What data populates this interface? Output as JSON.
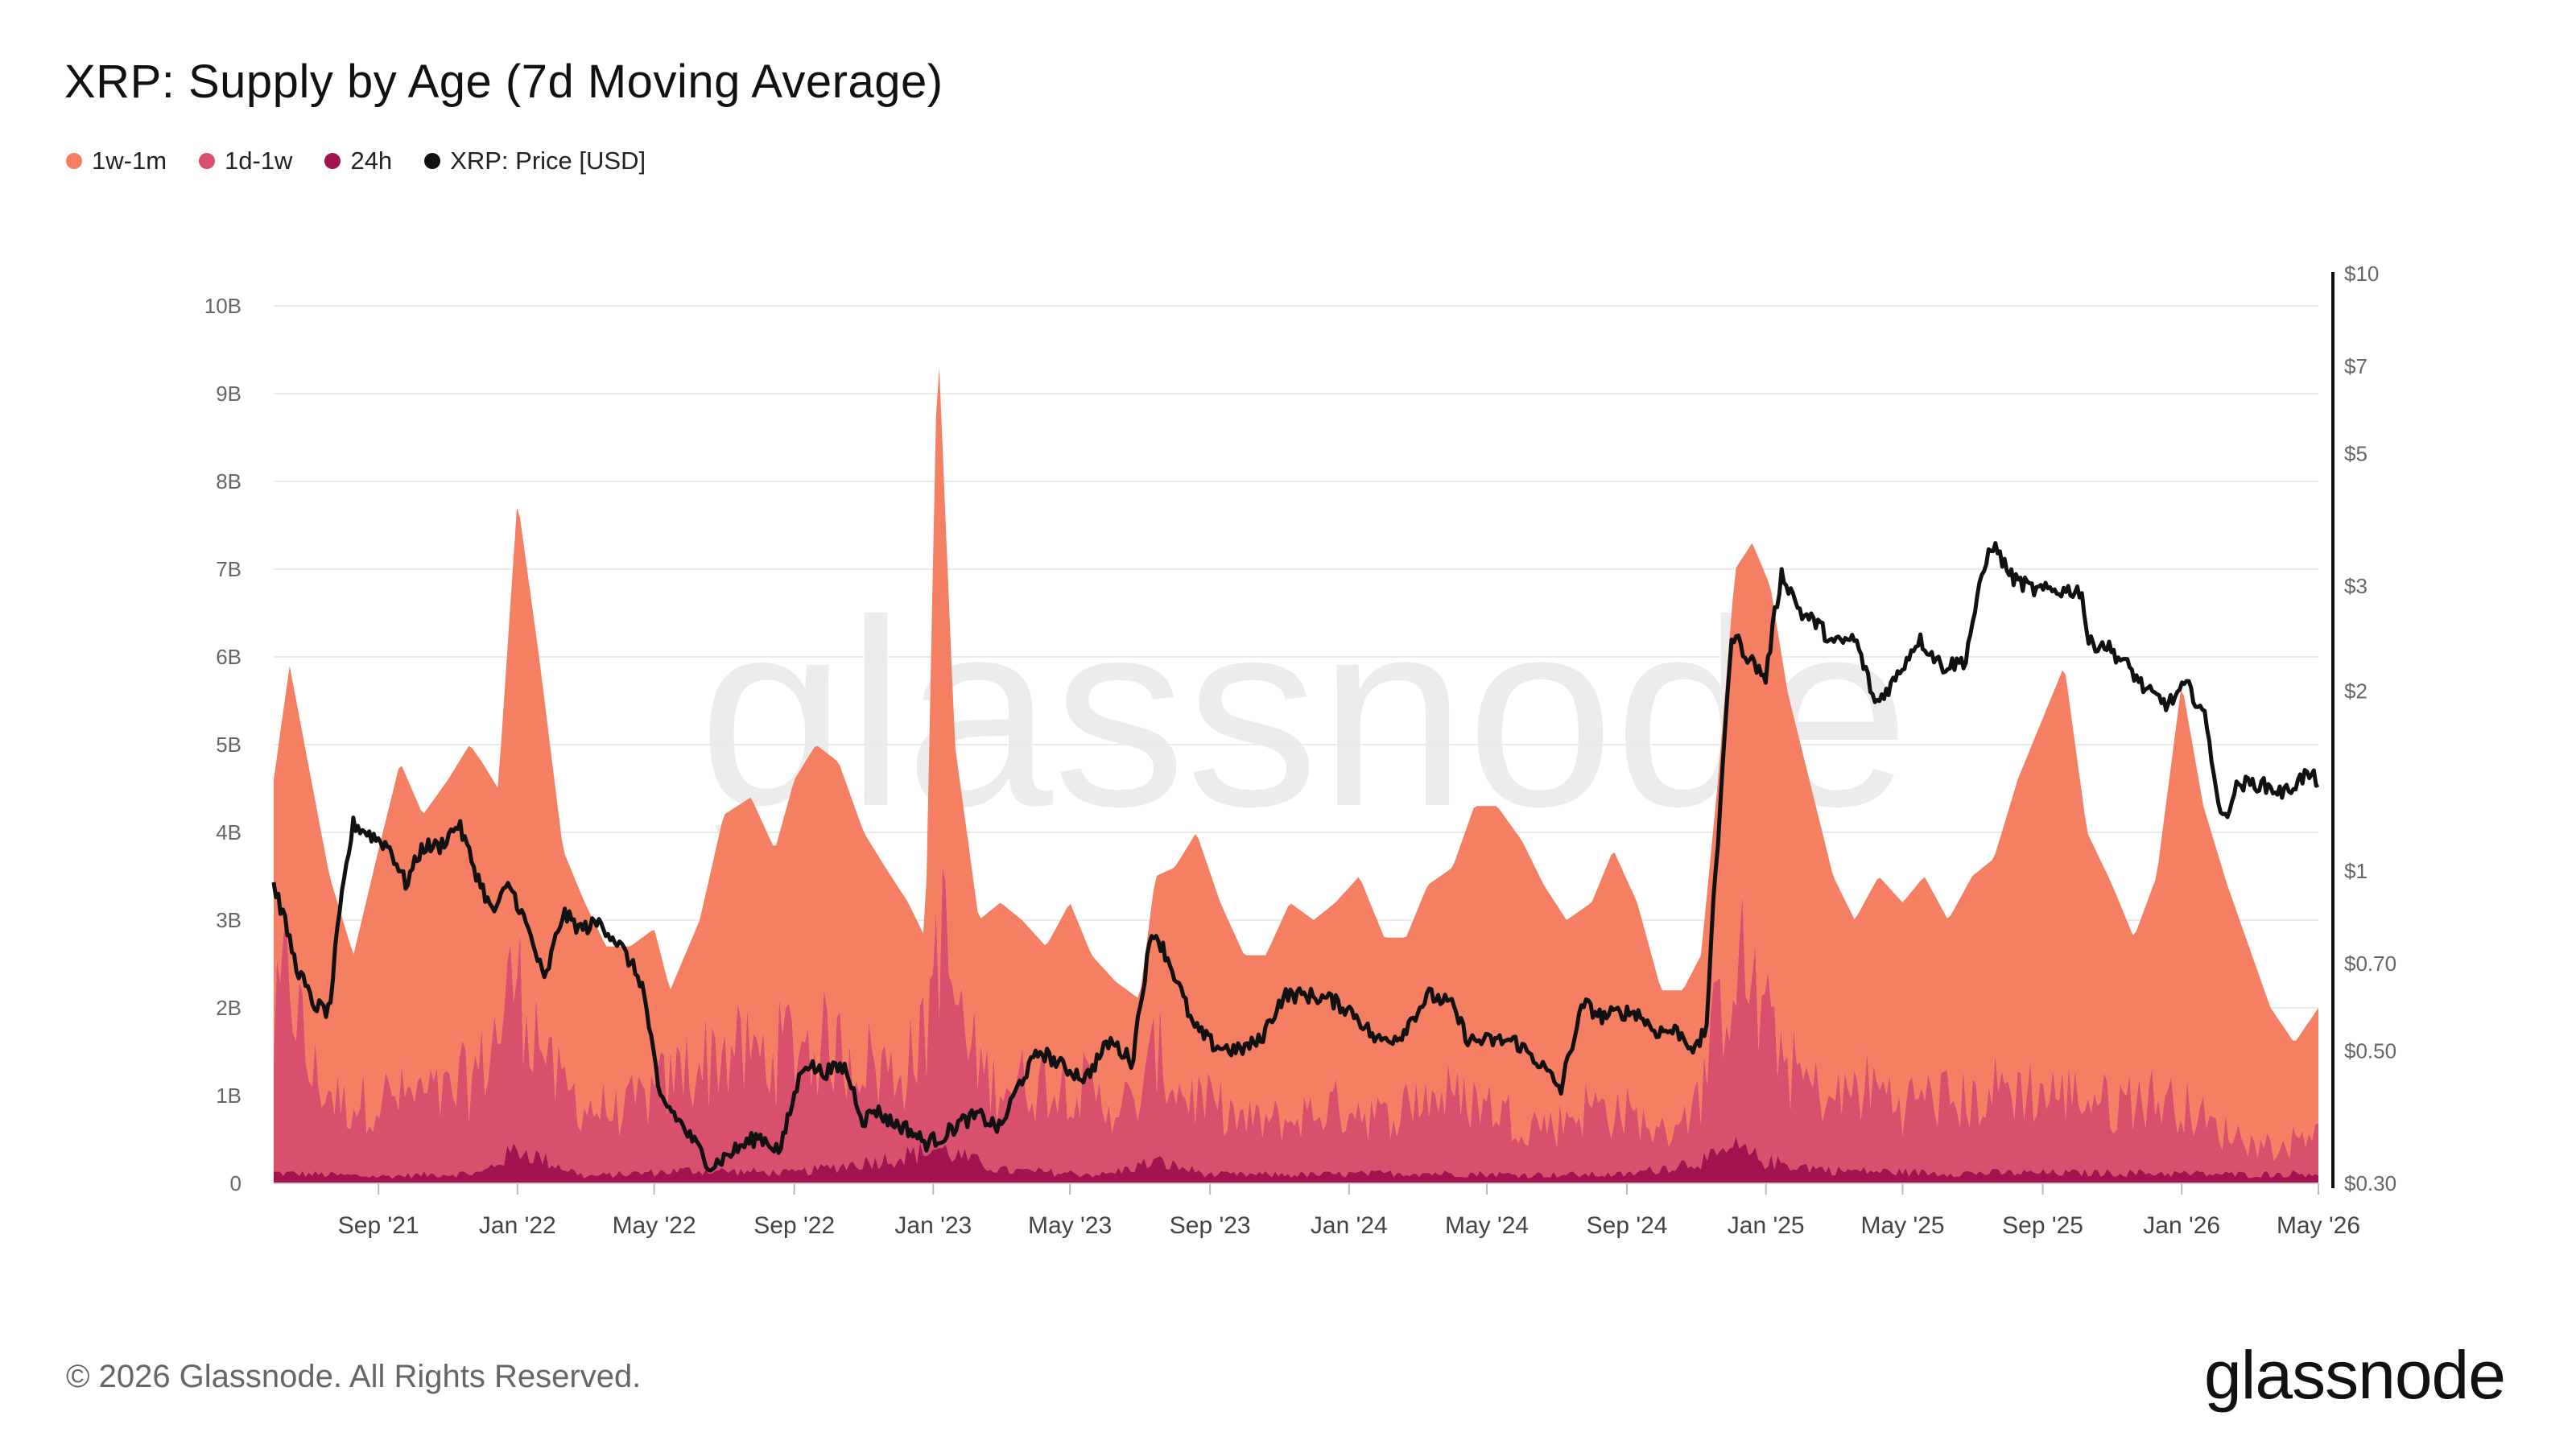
{
  "title": "XRP: Supply by Age (7d Moving Average)",
  "legend": [
    {
      "label": "1w-1m",
      "color": "#f47f63"
    },
    {
      "label": "1d-1w",
      "color": "#d9506c"
    },
    {
      "label": "24h",
      "color": "#a3134f"
    },
    {
      "label": "XRP: Price [USD]",
      "color": "#111111"
    }
  ],
  "footer": "© 2026 Glassnode. All Rights Reserved.",
  "watermark": "glassnode",
  "logo": "glassnode",
  "chart_data": {
    "type": "area",
    "x_start": "2021-06-01",
    "x_end": "2026-05-01",
    "x_ticks": [
      "2021-09-01",
      "2022-01-01",
      "2022-05-01",
      "2022-09-01",
      "2023-01-01",
      "2023-05-01",
      "2023-09-01",
      "2024-01-01",
      "2024-05-01",
      "2024-09-01",
      "2025-01-01",
      "2025-05-01",
      "2025-09-01",
      "2026-01-01",
      "2026-05-01"
    ],
    "x_tick_labels": [
      "Sep '21",
      "Jan '22",
      "May '22",
      "Sep '22",
      "Jan '23",
      "May '23",
      "Sep '23",
      "Jan '24",
      "May '24",
      "Sep '24",
      "Jan '25",
      "May '25",
      "Sep '25",
      "Jan '26",
      "May '26"
    ],
    "y_left": {
      "label": "",
      "range": [
        0,
        10000000000
      ],
      "ticks": [
        0,
        1000000000,
        2000000000,
        3000000000,
        4000000000,
        5000000000,
        6000000000,
        7000000000,
        8000000000,
        9000000000,
        10000000000
      ],
      "tick_labels": [
        "0",
        "1B",
        "2B",
        "3B",
        "4B",
        "5B",
        "6B",
        "7B",
        "8B",
        "9B",
        "10B"
      ]
    },
    "y_right": {
      "label": "",
      "scale": "log",
      "range": [
        0.3,
        10
      ],
      "ticks": [
        0.3,
        0.5,
        0.7,
        1,
        2,
        3,
        5,
        7,
        10
      ],
      "tick_labels": [
        "$0.30",
        "$0.50",
        "$0.70",
        "$1",
        "$2",
        "$3",
        "$5",
        "$7",
        "$10"
      ]
    },
    "grid": true,
    "stacked": true,
    "series": [
      {
        "name": "1w-1m",
        "color": "#f47f63",
        "axis": "left",
        "x": [
          "2021-06-01",
          "2021-06-15",
          "2021-07-01",
          "2021-07-20",
          "2021-08-10",
          "2021-09-01",
          "2021-09-20",
          "2021-10-10",
          "2021-11-01",
          "2021-11-20",
          "2021-12-01",
          "2021-12-15",
          "2022-01-01",
          "2022-01-20",
          "2022-02-10",
          "2022-03-01",
          "2022-03-20",
          "2022-04-10",
          "2022-05-01",
          "2022-05-15",
          "2022-06-10",
          "2022-07-01",
          "2022-07-25",
          "2022-08-15",
          "2022-09-01",
          "2022-09-20",
          "2022-10-10",
          "2022-11-01",
          "2022-11-20",
          "2022-12-10",
          "2022-12-25",
          "2023-01-05",
          "2023-01-20",
          "2023-02-10",
          "2023-03-01",
          "2023-03-20",
          "2023-04-10",
          "2023-05-01",
          "2023-05-20",
          "2023-06-10",
          "2023-07-01",
          "2023-07-15",
          "2023-08-01",
          "2023-08-20",
          "2023-09-10",
          "2023-10-01",
          "2023-10-20",
          "2023-11-10",
          "2023-12-01",
          "2023-12-20",
          "2024-01-10",
          "2024-02-01",
          "2024-02-20",
          "2024-03-10",
          "2024-04-01",
          "2024-04-20",
          "2024-05-10",
          "2024-06-01",
          "2024-06-20",
          "2024-07-10",
          "2024-08-01",
          "2024-08-20",
          "2024-09-10",
          "2024-10-01",
          "2024-10-20",
          "2024-11-05",
          "2024-11-20",
          "2024-12-05",
          "2024-12-20",
          "2025-01-05",
          "2025-01-20",
          "2025-02-10",
          "2025-03-01",
          "2025-03-20",
          "2025-04-10",
          "2025-05-01",
          "2025-05-20",
          "2025-06-10",
          "2025-07-01",
          "2025-07-20",
          "2025-08-10",
          "2025-09-01",
          "2025-09-20",
          "2025-10-10",
          "2025-11-01",
          "2025-11-20",
          "2025-12-10",
          "2026-01-01",
          "2026-01-20",
          "2026-02-10",
          "2026-03-01",
          "2026-03-20",
          "2026-04-10",
          "2026-05-01"
        ],
        "values": [
          4.6,
          5.9,
          4.8,
          3.5,
          2.6,
          3.8,
          4.8,
          4.2,
          4.6,
          5.0,
          4.8,
          4.5,
          7.8,
          6.0,
          3.8,
          3.2,
          2.7,
          2.7,
          2.9,
          2.2,
          3.0,
          4.2,
          4.4,
          3.8,
          4.6,
          5.0,
          4.8,
          4.0,
          3.6,
          3.2,
          2.8,
          9.7,
          5.0,
          3.0,
          3.2,
          3.0,
          2.7,
          3.2,
          2.6,
          2.3,
          2.1,
          3.5,
          3.6,
          4.0,
          3.2,
          2.6,
          2.6,
          3.2,
          3.0,
          3.2,
          3.5,
          2.8,
          2.8,
          3.4,
          3.6,
          4.3,
          4.3,
          3.9,
          3.4,
          3.0,
          3.2,
          3.8,
          3.2,
          2.2,
          2.2,
          2.6,
          4.6,
          7.0,
          7.3,
          6.8,
          5.6,
          4.5,
          3.5,
          3.0,
          3.5,
          3.2,
          3.5,
          3.0,
          3.5,
          3.7,
          4.6,
          5.3,
          5.9,
          4.0,
          3.4,
          2.8,
          3.5,
          5.7,
          4.3,
          3.4,
          2.7,
          2.0,
          1.6,
          2.0
        ]
      },
      {
        "name": "1d-1w",
        "color": "#d9506c",
        "axis": "left",
        "x": [
          "2021-06-01",
          "2021-06-15",
          "2021-07-01",
          "2021-08-01",
          "2021-09-01",
          "2021-10-01",
          "2021-11-01",
          "2021-12-01",
          "2022-01-01",
          "2022-02-01",
          "2022-03-01",
          "2022-04-01",
          "2022-05-01",
          "2022-06-01",
          "2022-07-01",
          "2022-08-01",
          "2022-09-01",
          "2022-10-01",
          "2022-11-01",
          "2022-12-01",
          "2022-12-25",
          "2023-01-05",
          "2023-02-01",
          "2023-03-01",
          "2023-04-01",
          "2023-05-01",
          "2023-06-01",
          "2023-07-01",
          "2023-07-15",
          "2023-08-01",
          "2023-09-01",
          "2023-10-01",
          "2023-11-01",
          "2023-12-01",
          "2024-01-01",
          "2024-02-01",
          "2024-03-01",
          "2024-04-01",
          "2024-05-01",
          "2024-06-01",
          "2024-07-01",
          "2024-08-01",
          "2024-09-01",
          "2024-10-01",
          "2024-11-01",
          "2024-11-20",
          "2024-12-05",
          "2025-01-01",
          "2025-02-01",
          "2025-03-01",
          "2025-04-01",
          "2025-05-01",
          "2025-06-01",
          "2025-07-01",
          "2025-08-01",
          "2025-09-01",
          "2025-10-01",
          "2025-11-01",
          "2025-12-01",
          "2026-01-01",
          "2026-02-01",
          "2026-03-01",
          "2026-04-01",
          "2026-05-01"
        ],
        "values": [
          1.5,
          2.4,
          1.2,
          0.8,
          0.9,
          0.9,
          0.9,
          1.2,
          2.0,
          1.0,
          0.8,
          0.7,
          0.9,
          1.2,
          1.4,
          1.3,
          1.5,
          1.4,
          1.2,
          1.0,
          1.3,
          2.6,
          1.2,
          1.0,
          1.0,
          1.1,
          0.8,
          0.7,
          1.3,
          0.9,
          0.8,
          0.6,
          0.6,
          0.7,
          0.8,
          0.6,
          0.9,
          0.9,
          0.8,
          0.6,
          0.6,
          0.8,
          0.7,
          0.4,
          0.7,
          1.5,
          2.2,
          1.6,
          1.0,
          0.8,
          1.0,
          0.8,
          0.9,
          0.8,
          1.0,
          0.9,
          0.9,
          0.8,
          0.9,
          0.8,
          0.5,
          0.4,
          0.3,
          0.6
        ]
      },
      {
        "name": "24h",
        "color": "#a3134f",
        "axis": "left",
        "x": [
          "2021-06-01",
          "2021-09-01",
          "2021-12-01",
          "2022-01-01",
          "2022-03-01",
          "2022-06-01",
          "2022-09-01",
          "2022-12-01",
          "2023-01-05",
          "2023-03-01",
          "2023-06-01",
          "2023-07-15",
          "2023-09-01",
          "2023-12-01",
          "2024-03-01",
          "2024-06-01",
          "2024-09-01",
          "2024-11-20",
          "2024-12-05",
          "2025-01-01",
          "2025-03-01",
          "2025-06-01",
          "2025-09-01",
          "2025-12-01",
          "2026-03-01",
          "2026-05-01"
        ],
        "values": [
          0.12,
          0.08,
          0.12,
          0.4,
          0.08,
          0.15,
          0.12,
          0.3,
          0.4,
          0.15,
          0.1,
          0.25,
          0.1,
          0.1,
          0.12,
          0.1,
          0.1,
          0.3,
          0.4,
          0.25,
          0.15,
          0.12,
          0.12,
          0.12,
          0.1,
          0.12
        ]
      },
      {
        "name": "XRP: Price [USD]",
        "color": "#111111",
        "axis": "right",
        "type": "line",
        "x": [
          "2021-06-01",
          "2021-06-20",
          "2021-07-05",
          "2021-07-20",
          "2021-08-10",
          "2021-08-25",
          "2021-09-10",
          "2021-09-25",
          "2021-10-10",
          "2021-10-25",
          "2021-11-10",
          "2021-11-25",
          "2021-12-10",
          "2021-12-25",
          "2022-01-10",
          "2022-01-25",
          "2022-02-10",
          "2022-02-25",
          "2022-03-15",
          "2022-04-01",
          "2022-04-20",
          "2022-05-05",
          "2022-05-15",
          "2022-06-01",
          "2022-06-20",
          "2022-07-10",
          "2022-08-01",
          "2022-08-20",
          "2022-09-10",
          "2022-09-25",
          "2022-10-15",
          "2022-11-01",
          "2022-11-10",
          "2022-11-25",
          "2022-12-10",
          "2022-12-25",
          "2023-01-10",
          "2023-01-25",
          "2023-02-10",
          "2023-03-01",
          "2023-03-20",
          "2023-04-05",
          "2023-04-25",
          "2023-05-15",
          "2023-06-05",
          "2023-06-25",
          "2023-07-13",
          "2023-07-25",
          "2023-08-17",
          "2023-09-05",
          "2023-09-25",
          "2023-10-15",
          "2023-11-05",
          "2023-11-25",
          "2023-12-15",
          "2024-01-05",
          "2024-01-25",
          "2024-02-15",
          "2024-03-11",
          "2024-03-30",
          "2024-04-15",
          "2024-05-05",
          "2024-05-25",
          "2024-06-15",
          "2024-07-05",
          "2024-07-25",
          "2024-08-10",
          "2024-08-25",
          "2024-09-10",
          "2024-09-25",
          "2024-10-15",
          "2024-11-01",
          "2024-11-10",
          "2024-11-20",
          "2024-12-03",
          "2024-12-15",
          "2025-01-01",
          "2025-01-15",
          "2025-02-01",
          "2025-02-15",
          "2025-03-01",
          "2025-03-20",
          "2025-04-07",
          "2025-04-25",
          "2025-05-15",
          "2025-06-05",
          "2025-06-25",
          "2025-07-18",
          "2025-08-05",
          "2025-08-25",
          "2025-09-15",
          "2025-10-05",
          "2025-10-11",
          "2025-10-25",
          "2025-11-15",
          "2025-12-01",
          "2025-12-20",
          "2026-01-05",
          "2026-01-20",
          "2026-02-05",
          "2026-02-20",
          "2026-03-10",
          "2026-04-01",
          "2026-04-20",
          "2026-05-01"
        ],
        "values": [
          0.95,
          0.7,
          0.6,
          0.58,
          1.2,
          1.15,
          1.1,
          0.95,
          1.1,
          1.1,
          1.2,
          1.0,
          0.85,
          0.95,
          0.8,
          0.65,
          0.85,
          0.8,
          0.82,
          0.75,
          0.65,
          0.42,
          0.4,
          0.36,
          0.32,
          0.34,
          0.36,
          0.34,
          0.48,
          0.46,
          0.47,
          0.38,
          0.4,
          0.38,
          0.37,
          0.35,
          0.36,
          0.38,
          0.39,
          0.37,
          0.45,
          0.5,
          0.47,
          0.45,
          0.52,
          0.48,
          0.8,
          0.72,
          0.55,
          0.51,
          0.5,
          0.52,
          0.62,
          0.62,
          0.61,
          0.58,
          0.52,
          0.53,
          0.62,
          0.6,
          0.52,
          0.52,
          0.52,
          0.48,
          0.43,
          0.6,
          0.57,
          0.58,
          0.58,
          0.54,
          0.54,
          0.5,
          0.55,
          1.1,
          2.5,
          2.3,
          2.1,
          3.15,
          2.7,
          2.6,
          2.4,
          2.45,
          1.9,
          2.1,
          2.45,
          2.2,
          2.25,
          3.55,
          3.1,
          2.95,
          2.95,
          2.95,
          2.4,
          2.4,
          2.2,
          2.0,
          1.9,
          2.05,
          1.85,
          1.2,
          1.4,
          1.4,
          1.35,
          1.45,
          1.42
        ]
      }
    ]
  }
}
